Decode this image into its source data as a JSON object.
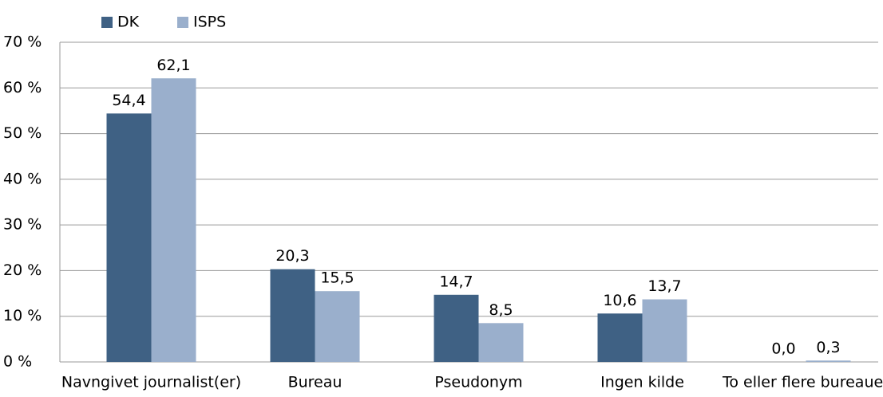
{
  "chart_data": {
    "type": "bar",
    "categories": [
      "Navngivet journalist(er)",
      "Bureau",
      "Pseudonym",
      "Ingen kilde",
      "To eller flere bureauer"
    ],
    "series": [
      {
        "name": "DK",
        "color": "#3f6184",
        "values": [
          54.4,
          20.3,
          14.7,
          10.6,
          0.0
        ],
        "value_labels": [
          "54,4",
          "20,3",
          "14,7",
          "10,6",
          "0,0"
        ]
      },
      {
        "name": "ISPS",
        "color": "#9aafcc",
        "values": [
          62.1,
          15.5,
          8.5,
          13.7,
          0.3
        ],
        "value_labels": [
          "62,1",
          "15,5",
          "8,5",
          "13,7",
          "0,3"
        ]
      }
    ],
    "ylim": [
      0,
      70
    ],
    "yticks": [
      {
        "value": 0,
        "label": "0 %"
      },
      {
        "value": 10,
        "label": "10 %"
      },
      {
        "value": 20,
        "label": "20 %"
      },
      {
        "value": 30,
        "label": "30 %"
      },
      {
        "value": 40,
        "label": "40 %"
      },
      {
        "value": 50,
        "label": "50 %"
      },
      {
        "value": 60,
        "label": "60 %"
      },
      {
        "value": 70,
        "label": "70 %"
      }
    ],
    "grid": true,
    "legend": "top"
  }
}
